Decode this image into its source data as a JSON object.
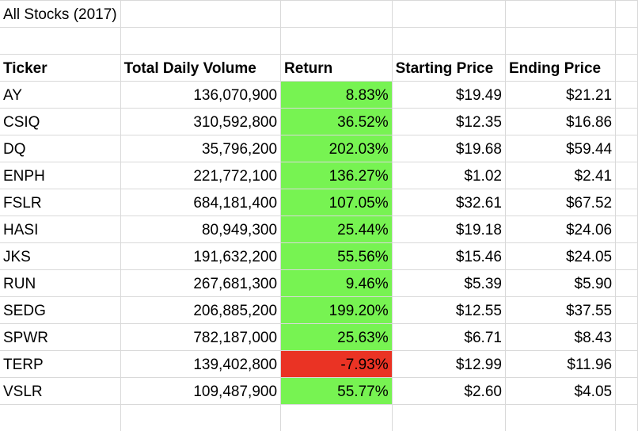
{
  "sheet": {
    "title": "All Stocks (2017)",
    "headers": [
      "Ticker",
      "Total Daily Volume",
      "Return",
      "Starting Price",
      "Ending Price"
    ],
    "colors": {
      "positive_return": "#77f352",
      "negative_return": "#ea3324",
      "gridline": "#d9d9d9"
    },
    "rows": [
      {
        "ticker": "AY",
        "volume": "136,070,900",
        "return": "8.83%",
        "start": "$19.49",
        "end": "$21.21"
      },
      {
        "ticker": "CSIQ",
        "volume": "310,592,800",
        "return": "36.52%",
        "start": "$12.35",
        "end": "$16.86"
      },
      {
        "ticker": "DQ",
        "volume": "35,796,200",
        "return": "202.03%",
        "start": "$19.68",
        "end": "$59.44"
      },
      {
        "ticker": "ENPH",
        "volume": "221,772,100",
        "return": "136.27%",
        "start": "$1.02",
        "end": "$2.41"
      },
      {
        "ticker": "FSLR",
        "volume": "684,181,400",
        "return": "107.05%",
        "start": "$32.61",
        "end": "$67.52"
      },
      {
        "ticker": "HASI",
        "volume": "80,949,300",
        "return": "25.44%",
        "start": "$19.18",
        "end": "$24.06"
      },
      {
        "ticker": "JKS",
        "volume": "191,632,200",
        "return": "55.56%",
        "start": "$15.46",
        "end": "$24.05"
      },
      {
        "ticker": "RUN",
        "volume": "267,681,300",
        "return": "9.46%",
        "start": "$5.39",
        "end": "$5.90"
      },
      {
        "ticker": "SEDG",
        "volume": "206,885,200",
        "return": "199.20%",
        "start": "$12.55",
        "end": "$37.55"
      },
      {
        "ticker": "SPWR",
        "volume": "782,187,000",
        "return": "25.63%",
        "start": "$6.71",
        "end": "$8.43"
      },
      {
        "ticker": "TERP",
        "volume": "139,402,800",
        "return": "-7.93%",
        "start": "$12.99",
        "end": "$11.96"
      },
      {
        "ticker": "VSLR",
        "volume": "109,487,900",
        "return": "55.77%",
        "start": "$2.60",
        "end": "$4.05"
      }
    ]
  }
}
